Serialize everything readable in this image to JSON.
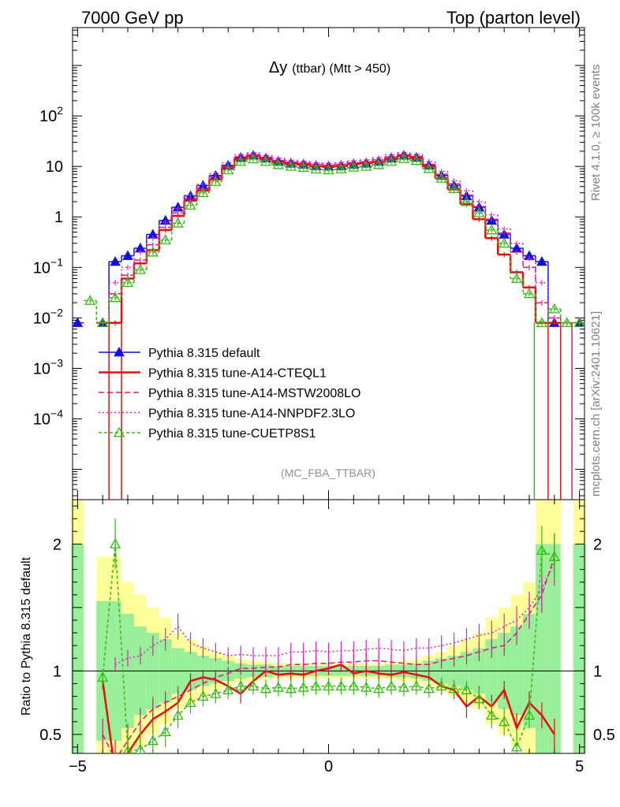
{
  "header": {
    "left": "7000 GeV pp",
    "right": "Top (parton level)"
  },
  "side": {
    "rivet": "Rivet 4.1.0, ≥ 100k events",
    "mcplots": "mcplots.cern.ch [arXiv:2401.10621]"
  },
  "chart_data": {
    "type": "line",
    "title_main": "Δy",
    "title_sub": "(ttbar) (Mtt > 450)",
    "analysis_id": "(MC_FBA_TTBAR)",
    "ratio_ylabel": "Ratio to Pythia 8.315 default",
    "xlim": [
      -5.1,
      5.1
    ],
    "upper_ylim_log10": [
      -5.6,
      3.75
    ],
    "ratio_ylim": [
      0.35,
      2.35
    ],
    "x_ticks": [
      -5,
      0,
      5
    ],
    "x_tick_labels": [
      "−5",
      "0",
      "5"
    ],
    "upper_y_ticks": [
      {
        "exp": 2,
        "base": "10",
        "sup": "2"
      },
      {
        "exp": 1,
        "base": "10",
        "sup": ""
      },
      {
        "exp": 0,
        "base": "1",
        "sup": ""
      },
      {
        "exp": -1,
        "base": "10",
        "sup": "−1"
      },
      {
        "exp": -2,
        "base": "10",
        "sup": "−2"
      },
      {
        "exp": -3,
        "base": "10",
        "sup": "−3"
      },
      {
        "exp": -4,
        "base": "10",
        "sup": "−4"
      }
    ],
    "ratio_y_ticks": [
      {
        "v": 2,
        "label": "2"
      },
      {
        "v": 1,
        "label": "1"
      },
      {
        "v": 0.5,
        "label": "0.5"
      }
    ],
    "x_centers": [
      -5.0,
      -4.75,
      -4.5,
      -4.25,
      -4.0,
      -3.75,
      -3.5,
      -3.25,
      -3.0,
      -2.75,
      -2.5,
      -2.25,
      -2.0,
      -1.75,
      -1.5,
      -1.25,
      -1.0,
      -0.75,
      -0.5,
      -0.25,
      0.0,
      0.25,
      0.5,
      0.75,
      1.0,
      1.25,
      1.5,
      1.75,
      2.0,
      2.25,
      2.5,
      2.75,
      3.0,
      3.25,
      3.5,
      3.75,
      4.0,
      4.25,
      4.5,
      4.75,
      5.0
    ],
    "reference_values": [
      0.008,
      null,
      0.008,
      0.13,
      0.17,
      0.24,
      0.45,
      0.85,
      1.55,
      2.6,
      4.2,
      6.6,
      10.5,
      15.0,
      16.5,
      14.5,
      12.5,
      11.5,
      11.0,
      10.2,
      10.0,
      10.2,
      11.0,
      11.5,
      12.5,
      14.5,
      16.5,
      15.0,
      10.5,
      6.6,
      4.2,
      2.6,
      1.55,
      0.85,
      0.45,
      0.24,
      0.17,
      0.13,
      0.008,
      null,
      0.008
    ],
    "series": [
      {
        "name": "Pythia 8.315 default",
        "color": "#1010e0",
        "dash": "",
        "marker": "triangle-filled",
        "values": [
          0.008,
          null,
          0.008,
          0.13,
          0.17,
          0.24,
          0.45,
          0.85,
          1.55,
          2.6,
          4.2,
          6.6,
          10.5,
          15.0,
          16.5,
          14.5,
          12.5,
          11.5,
          11.0,
          10.2,
          10.0,
          10.2,
          11.0,
          11.5,
          12.5,
          14.5,
          16.5,
          15.0,
          10.5,
          6.6,
          4.2,
          2.6,
          1.55,
          0.85,
          0.45,
          0.24,
          0.17,
          0.13,
          0.008,
          null,
          0.008
        ],
        "ratio": [
          null,
          null,
          null,
          null,
          null,
          null,
          null,
          null,
          null,
          null,
          null,
          null,
          null,
          null,
          null,
          null,
          null,
          null,
          null,
          null,
          null,
          null,
          null,
          null,
          null,
          null,
          null,
          null,
          null,
          null,
          null,
          null,
          null,
          null,
          null,
          null,
          null,
          null,
          null,
          null,
          null
        ]
      },
      {
        "name": "Pythia 8.315 tune-A14-CTEQL1",
        "color": "#e01010",
        "dash": "",
        "marker": "none",
        "values": [
          null,
          null,
          0.008,
          0.008,
          0.06,
          0.12,
          0.22,
          0.55,
          1.05,
          2.1,
          3.3,
          5.5,
          9.5,
          14.0,
          16.0,
          14.0,
          12.0,
          11.2,
          10.8,
          10.0,
          9.8,
          10.1,
          11.2,
          11.5,
          12.2,
          14.0,
          16.2,
          14.5,
          10.0,
          5.8,
          3.5,
          1.8,
          0.9,
          0.38,
          0.18,
          0.08,
          0.04,
          0.008,
          0.008,
          null,
          null
        ],
        "ratio": [
          null,
          null,
          0.92,
          0.2,
          0.35,
          0.5,
          0.62,
          0.68,
          0.75,
          0.92,
          0.95,
          0.93,
          0.88,
          0.82,
          0.92,
          1.0,
          0.97,
          0.98,
          0.97,
          1.0,
          1.02,
          1.05,
          0.98,
          1.0,
          0.98,
          0.97,
          0.99,
          0.97,
          0.95,
          0.88,
          0.85,
          0.72,
          0.8,
          0.72,
          0.85,
          0.55,
          0.75,
          0.65,
          0.5,
          null,
          null
        ]
      },
      {
        "name": "Pythia 8.315 tune-A14-MSTW2008LO",
        "color": "#e0147a",
        "dash": "7,4",
        "marker": "none",
        "values": [
          null,
          null,
          0.008,
          0.03,
          0.07,
          0.14,
          0.28,
          0.62,
          1.2,
          2.3,
          3.7,
          6.2,
          10.0,
          15.5,
          17.0,
          15.2,
          13.2,
          12.2,
          11.6,
          11.0,
          10.6,
          11.0,
          11.8,
          12.4,
          13.5,
          15.5,
          17.2,
          15.8,
          11.0,
          7.0,
          4.5,
          2.7,
          1.6,
          0.9,
          0.48,
          0.2,
          0.1,
          0.02,
          0.01,
          0.008,
          0.008
        ],
        "ratio": [
          null,
          null,
          0.5,
          0.3,
          0.45,
          0.6,
          0.7,
          0.75,
          0.8,
          0.85,
          0.9,
          0.95,
          0.98,
          1.02,
          1.02,
          1.03,
          1.03,
          1.05,
          1.05,
          1.06,
          1.06,
          1.07,
          1.07,
          1.08,
          1.08,
          1.07,
          1.06,
          1.05,
          1.05,
          1.08,
          1.1,
          1.12,
          1.15,
          1.18,
          1.2,
          1.3,
          1.45,
          1.6,
          1.9,
          null,
          null
        ]
      },
      {
        "name": "Pythia 8.315 tune-A14-NNPDF2.3LO",
        "color": "#e020c0",
        "dash": "2,3",
        "marker": "none",
        "values": [
          null,
          null,
          0.008,
          0.05,
          0.1,
          0.2,
          0.38,
          0.78,
          1.45,
          2.7,
          4.4,
          7.2,
          11.8,
          17.0,
          18.5,
          16.5,
          14.5,
          13.2,
          12.6,
          11.8,
          11.5,
          11.9,
          12.8,
          13.5,
          14.8,
          17.0,
          18.8,
          17.2,
          12.5,
          8.0,
          5.2,
          3.3,
          2.0,
          1.1,
          0.58,
          0.3,
          0.15,
          0.05,
          0.01,
          0.008,
          0.008
        ],
        "ratio": [
          null,
          null,
          null,
          1.05,
          1.1,
          1.12,
          1.2,
          1.25,
          1.35,
          1.22,
          1.18,
          1.15,
          1.12,
          1.13,
          1.12,
          1.12,
          1.12,
          1.15,
          1.15,
          1.16,
          1.15,
          1.16,
          1.16,
          1.17,
          1.18,
          1.17,
          1.16,
          1.18,
          1.18,
          1.2,
          1.22,
          1.25,
          1.28,
          1.3,
          1.35,
          1.4,
          1.5,
          1.65,
          1.85,
          null,
          null
        ]
      },
      {
        "name": "Pythia 8.315 tune-CUETP8S1",
        "color": "#33bb10",
        "dash": "4,3",
        "marker": "triangle-open",
        "values": [
          null,
          0.022,
          0.008,
          0.025,
          0.05,
          0.09,
          0.2,
          0.35,
          0.75,
          1.7,
          3.0,
          5.0,
          8.5,
          12.5,
          14.0,
          12.5,
          10.8,
          10.0,
          9.5,
          8.8,
          8.5,
          8.9,
          9.6,
          10.0,
          10.8,
          12.5,
          14.2,
          13.0,
          9.0,
          5.8,
          3.6,
          2.0,
          1.2,
          0.55,
          0.3,
          0.06,
          0.03,
          0.008,
          0.015,
          0.008,
          0.008
        ],
        "ratio": [
          null,
          null,
          0.95,
          2.0,
          0.37,
          0.38,
          0.45,
          0.52,
          0.65,
          0.75,
          0.8,
          0.82,
          0.85,
          0.88,
          0.88,
          0.86,
          0.87,
          0.86,
          0.87,
          0.88,
          0.88,
          0.88,
          0.88,
          0.87,
          0.86,
          0.88,
          0.87,
          0.88,
          0.86,
          0.88,
          0.86,
          0.85,
          0.78,
          0.65,
          0.6,
          0.4,
          0.65,
          1.95,
          1.9,
          null,
          null
        ]
      }
    ],
    "uncertainty_bands": {
      "green_inner": [
        2.0,
        null,
        1.55,
        1.55,
        1.45,
        1.35,
        1.3,
        1.25,
        1.18,
        1.15,
        1.12,
        1.1,
        1.08,
        1.06,
        1.05,
        1.05,
        1.04,
        1.04,
        1.04,
        1.04,
        1.04,
        1.04,
        1.04,
        1.04,
        1.04,
        1.05,
        1.05,
        1.06,
        1.08,
        1.1,
        1.12,
        1.15,
        1.18,
        1.25,
        1.3,
        1.35,
        1.45,
        2.0,
        2.0,
        null,
        2.0
      ],
      "yellow_outer": [
        2.35,
        null,
        1.9,
        1.9,
        1.7,
        1.6,
        1.5,
        1.42,
        1.3,
        1.25,
        1.2,
        1.15,
        1.12,
        1.09,
        1.08,
        1.07,
        1.06,
        1.06,
        1.06,
        1.06,
        1.06,
        1.06,
        1.06,
        1.06,
        1.06,
        1.07,
        1.08,
        1.09,
        1.12,
        1.15,
        1.2,
        1.25,
        1.3,
        1.42,
        1.5,
        1.6,
        1.7,
        2.35,
        2.35,
        null,
        2.35
      ]
    }
  }
}
